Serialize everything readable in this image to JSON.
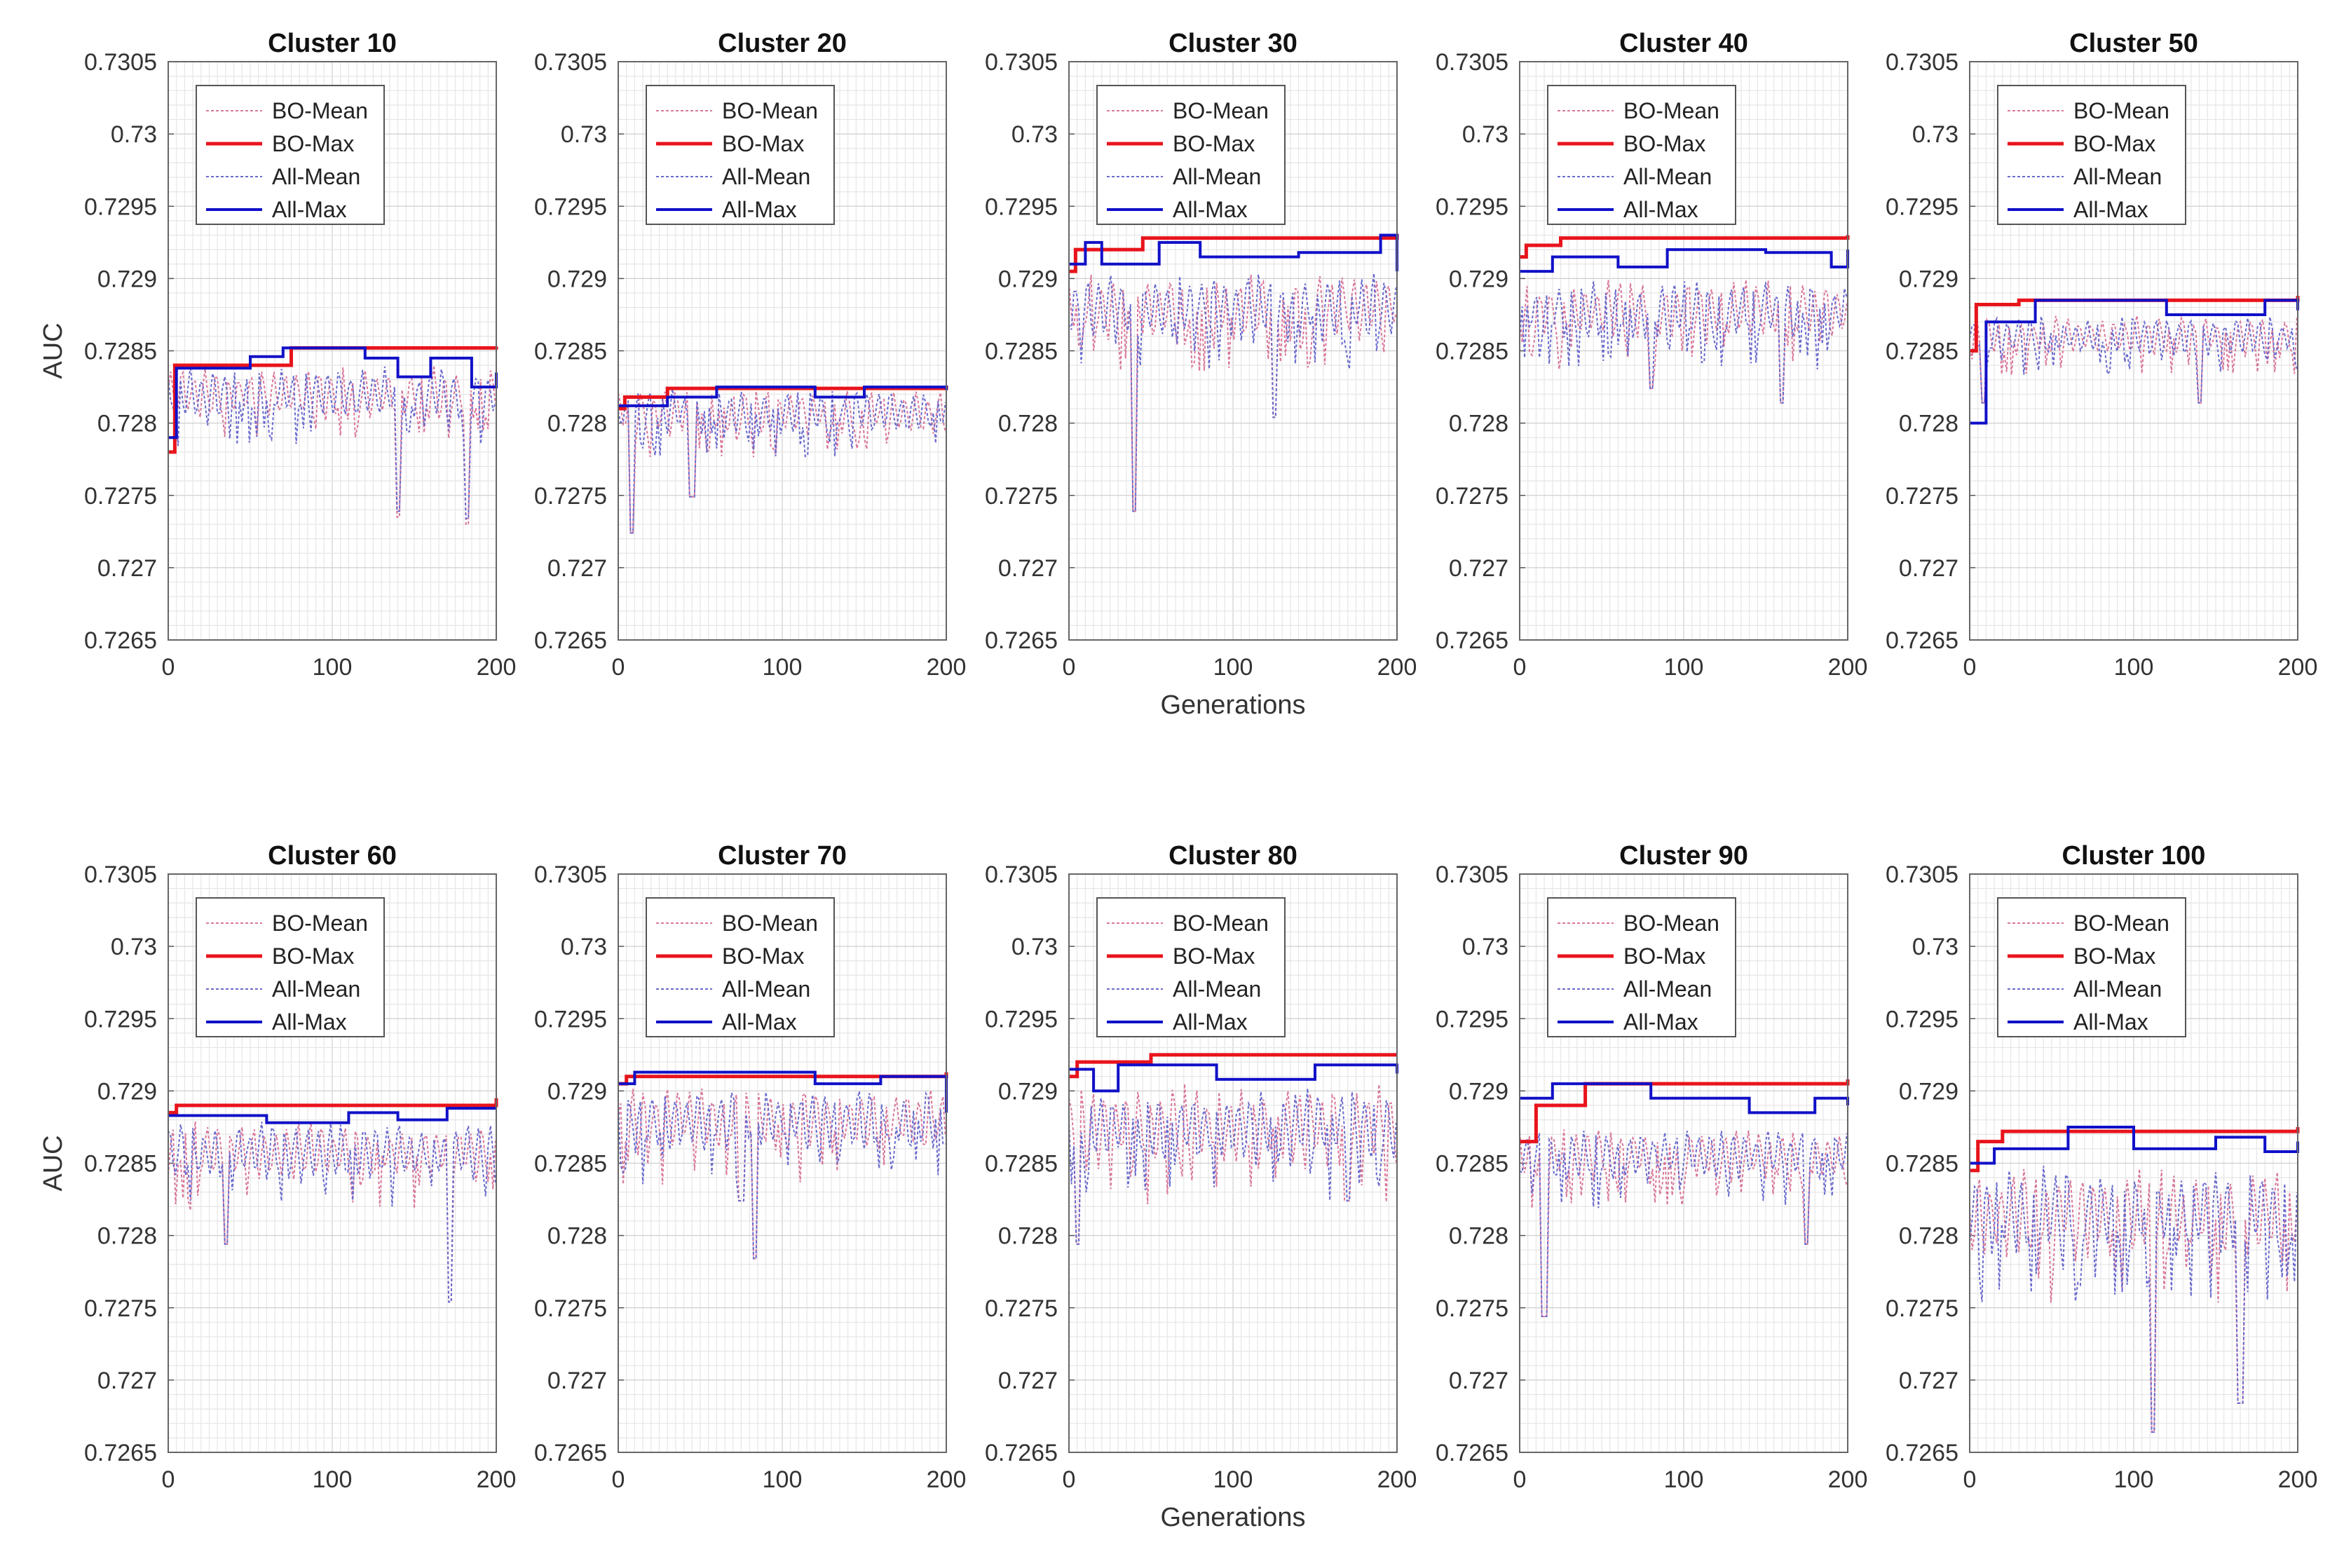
{
  "chart_data": {
    "type": "line",
    "layout": "grid of small multiples",
    "shared": {
      "ylabel": "AUC",
      "xlabel": "Generations",
      "xlim": [
        0,
        200
      ],
      "ylim": [
        0.7265,
        0.7305
      ],
      "xticks": [
        0,
        100,
        200
      ],
      "yticks": [
        0.7265,
        0.727,
        0.7275,
        0.728,
        0.7285,
        0.729,
        0.7295,
        0.73,
        0.7305
      ],
      "ytick_labels": [
        "0.7265",
        "0.727",
        "0.7275",
        "0.728",
        "0.7285",
        "0.729",
        "0.7295",
        "0.73",
        "0.7305"
      ],
      "legend": [
        "BO-Mean",
        "BO-Max",
        "All-Mean",
        "All-Max"
      ],
      "legend_position": "top-left",
      "grid": true,
      "colors": {
        "BO-Mean": "#d9779a",
        "BO-Max": "#e8141c",
        "All-Mean": "#6a6acd",
        "All-Max": "#1010c8"
      }
    },
    "panels": [
      {
        "title": "Cluster 10",
        "bo_max": [
          [
            0,
            0.7278
          ],
          [
            4,
            0.7284
          ],
          [
            75,
            0.72852
          ],
          [
            200,
            0.72853
          ]
        ],
        "all_max": [
          [
            0,
            0.7279
          ],
          [
            5,
            0.72838
          ],
          [
            50,
            0.72846
          ],
          [
            70,
            0.72852
          ],
          [
            120,
            0.72845
          ],
          [
            140,
            0.72832
          ],
          [
            160,
            0.72845
          ],
          [
            185,
            0.72825
          ],
          [
            200,
            0.72835
          ]
        ],
        "mean_band": [
          0.728,
          0.7284
        ],
        "mean_dips": [
          [
            140,
            0.72735
          ],
          [
            182,
            0.7273
          ]
        ]
      },
      {
        "title": "Cluster 20",
        "bo_max": [
          [
            0,
            0.7281
          ],
          [
            4,
            0.72818
          ],
          [
            30,
            0.72824
          ],
          [
            200,
            0.72826
          ]
        ],
        "all_max": [
          [
            0,
            0.72812
          ],
          [
            30,
            0.72818
          ],
          [
            60,
            0.72825
          ],
          [
            120,
            0.72818
          ],
          [
            150,
            0.72825
          ],
          [
            200,
            0.72823
          ]
        ],
        "mean_band": [
          0.7279,
          0.72825
        ],
        "mean_dips": [
          [
            8,
            0.7272
          ],
          [
            45,
            0.72745
          ]
        ]
      },
      {
        "title": "Cluster 30",
        "bo_max": [
          [
            0,
            0.72905
          ],
          [
            4,
            0.7292
          ],
          [
            45,
            0.72928
          ],
          [
            200,
            0.72931
          ]
        ],
        "all_max": [
          [
            0,
            0.7291
          ],
          [
            10,
            0.72925
          ],
          [
            20,
            0.7291
          ],
          [
            55,
            0.72925
          ],
          [
            80,
            0.72915
          ],
          [
            140,
            0.72918
          ],
          [
            190,
            0.7293
          ],
          [
            200,
            0.72905
          ]
        ],
        "mean_band": [
          0.72855,
          0.72905
        ],
        "mean_dips": [
          [
            40,
            0.72735
          ],
          [
            125,
            0.728
          ]
        ]
      },
      {
        "title": "Cluster 40",
        "bo_max": [
          [
            0,
            0.72915
          ],
          [
            4,
            0.72923
          ],
          [
            25,
            0.72928
          ],
          [
            200,
            0.7293
          ]
        ],
        "all_max": [
          [
            0,
            0.72905
          ],
          [
            20,
            0.72915
          ],
          [
            60,
            0.72908
          ],
          [
            90,
            0.7292
          ],
          [
            150,
            0.72918
          ],
          [
            190,
            0.72908
          ],
          [
            200,
            0.7292
          ]
        ],
        "mean_band": [
          0.72855,
          0.729
        ],
        "mean_dips": [
          [
            80,
            0.7282
          ],
          [
            160,
            0.7281
          ]
        ]
      },
      {
        "title": "Cluster 50",
        "bo_max": [
          [
            0,
            0.7285
          ],
          [
            4,
            0.72882
          ],
          [
            30,
            0.72885
          ],
          [
            200,
            0.72888
          ]
        ],
        "all_max": [
          [
            0,
            0.728
          ],
          [
            10,
            0.7287
          ],
          [
            40,
            0.72885
          ],
          [
            120,
            0.72875
          ],
          [
            180,
            0.72885
          ],
          [
            200,
            0.72878
          ]
        ],
        "mean_band": [
          0.72845,
          0.72875
        ],
        "mean_dips": [
          [
            8,
            0.7281
          ],
          [
            140,
            0.7281
          ]
        ]
      },
      {
        "title": "Cluster 60",
        "bo_max": [
          [
            0,
            0.72885
          ],
          [
            5,
            0.7289
          ],
          [
            200,
            0.72895
          ]
        ],
        "all_max": [
          [
            0,
            0.72883
          ],
          [
            60,
            0.72878
          ],
          [
            110,
            0.72885
          ],
          [
            140,
            0.7288
          ],
          [
            170,
            0.72888
          ],
          [
            200,
            0.72888
          ]
        ],
        "mean_band": [
          0.72835,
          0.7288
        ],
        "mean_dips": [
          [
            35,
            0.7279
          ],
          [
            172,
            0.7275
          ]
        ]
      },
      {
        "title": "Cluster 70",
        "bo_max": [
          [
            0,
            0.72905
          ],
          [
            5,
            0.7291
          ],
          [
            200,
            0.72913
          ]
        ],
        "all_max": [
          [
            0,
            0.72905
          ],
          [
            10,
            0.72913
          ],
          [
            120,
            0.72905
          ],
          [
            160,
            0.7291
          ],
          [
            200,
            0.72885
          ]
        ],
        "mean_band": [
          0.72855,
          0.72905
        ],
        "mean_dips": [
          [
            75,
            0.7282
          ],
          [
            83,
            0.7278
          ]
        ]
      },
      {
        "title": "Cluster 80",
        "bo_max": [
          [
            0,
            0.7291
          ],
          [
            5,
            0.7292
          ],
          [
            50,
            0.72925
          ],
          [
            200,
            0.72925
          ]
        ],
        "all_max": [
          [
            0,
            0.72915
          ],
          [
            15,
            0.729
          ],
          [
            30,
            0.72918
          ],
          [
            90,
            0.72908
          ],
          [
            150,
            0.72918
          ],
          [
            200,
            0.72912
          ]
        ],
        "mean_band": [
          0.72845,
          0.72905
        ],
        "mean_dips": [
          [
            5,
            0.7279
          ],
          [
            170,
            0.7282
          ]
        ]
      },
      {
        "title": "Cluster 90",
        "bo_max": [
          [
            0,
            0.72865
          ],
          [
            10,
            0.7289
          ],
          [
            40,
            0.72905
          ],
          [
            200,
            0.72908
          ]
        ],
        "all_max": [
          [
            0,
            0.72895
          ],
          [
            20,
            0.72905
          ],
          [
            80,
            0.72895
          ],
          [
            140,
            0.72885
          ],
          [
            180,
            0.72895
          ],
          [
            200,
            0.7289
          ]
        ],
        "mean_band": [
          0.72835,
          0.72875
        ],
        "mean_dips": [
          [
            15,
            0.7274
          ],
          [
            175,
            0.7279
          ]
        ]
      },
      {
        "title": "Cluster 100",
        "bo_max": [
          [
            0,
            0.72845
          ],
          [
            5,
            0.72865
          ],
          [
            20,
            0.72872
          ],
          [
            200,
            0.72875
          ]
        ],
        "all_max": [
          [
            0,
            0.7285
          ],
          [
            15,
            0.7286
          ],
          [
            60,
            0.72875
          ],
          [
            100,
            0.7286
          ],
          [
            150,
            0.72868
          ],
          [
            180,
            0.72858
          ],
          [
            200,
            0.72865
          ]
        ],
        "mean_band": [
          0.7278,
          0.7285
        ],
        "mean_dips": [
          [
            112,
            0.7266
          ],
          [
            165,
            0.7268
          ]
        ]
      }
    ]
  }
}
